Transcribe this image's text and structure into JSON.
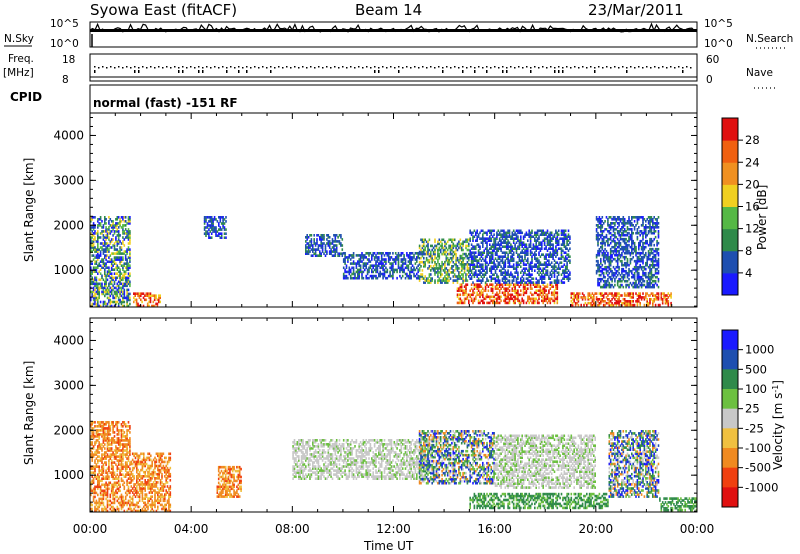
{
  "header": {
    "station": "Syowa East (fitACF)",
    "beam": "Beam 14",
    "date": "23/Mar/2011"
  },
  "top_panels": {
    "nsky_label": "N.Sky",
    "nsearch_label": "N.Search",
    "noise_ticks": [
      "10^5",
      "10^0"
    ],
    "freq_label": "Freq.",
    "freq_unit": "[MHz]",
    "freq_ticks": [
      "18",
      "8"
    ],
    "nave_ticks": [
      "60",
      "0"
    ],
    "nave_label": "Nave",
    "cpid_label": "CPID",
    "cpid_text": "normal (fast) -151 RF"
  },
  "colors": {
    "power": [
      "#1a1aff",
      "#1e4fb0",
      "#2f8a4a",
      "#55b845",
      "#f0d020",
      "#f09020",
      "#f06010",
      "#e01010"
    ],
    "velocity": [
      "#e01010",
      "#f04010",
      "#f08a20",
      "#f0c040",
      "#c8c8c8",
      "#6cc040",
      "#2f8a4a",
      "#1e4fb0",
      "#1a1aff"
    ]
  },
  "chart_data": [
    {
      "type": "heatmap",
      "title": "Power",
      "ylabel": "Slant Range [km]",
      "xlabel": "",
      "x_ticks": [
        "00:00",
        "04:00",
        "08:00",
        "12:00",
        "16:00",
        "20:00",
        "00:00"
      ],
      "x_range_hours": [
        0,
        24
      ],
      "y_ticks": [
        1000,
        2000,
        3000,
        4000
      ],
      "ylim": [
        180,
        4500
      ],
      "colorbar": {
        "label": "Power [dB]",
        "ticks": [
          "4",
          "8",
          "12",
          "16",
          "20",
          "24",
          "28"
        ],
        "range": [
          0,
          32
        ]
      },
      "regions": [
        {
          "h0": 0.0,
          "h1": 1.6,
          "r0": 180,
          "r1": 2200,
          "level": "mixed"
        },
        {
          "h0": 1.7,
          "h1": 2.8,
          "r0": 180,
          "r1": 500,
          "level": "high"
        },
        {
          "h0": 4.5,
          "h1": 5.4,
          "r0": 1700,
          "r1": 2200,
          "level": "low"
        },
        {
          "h0": 8.5,
          "h1": 10.0,
          "r0": 1300,
          "r1": 1800,
          "level": "low"
        },
        {
          "h0": 10.0,
          "h1": 13.0,
          "r0": 800,
          "r1": 1400,
          "level": "low"
        },
        {
          "h0": 13.0,
          "h1": 15.0,
          "r0": 700,
          "r1": 1700,
          "level": "mid"
        },
        {
          "h0": 14.5,
          "h1": 18.5,
          "r0": 250,
          "r1": 700,
          "level": "high"
        },
        {
          "h0": 15.0,
          "h1": 19.0,
          "r0": 700,
          "r1": 1900,
          "level": "low"
        },
        {
          "h0": 19.0,
          "h1": 23.0,
          "r0": 200,
          "r1": 500,
          "level": "high"
        },
        {
          "h0": 20.0,
          "h1": 22.5,
          "r0": 600,
          "r1": 2200,
          "level": "low"
        }
      ]
    },
    {
      "type": "heatmap",
      "title": "Velocity",
      "ylabel": "Slant Range [km]",
      "xlabel": "Time UT",
      "x_ticks": [
        "00:00",
        "04:00",
        "08:00",
        "12:00",
        "16:00",
        "20:00",
        "00:00"
      ],
      "x_range_hours": [
        0,
        24
      ],
      "y_ticks": [
        1000,
        2000,
        3000,
        4000
      ],
      "ylim": [
        180,
        4500
      ],
      "colorbar": {
        "label": "Velocity [m s^-1]",
        "ticks": [
          "1000",
          "500",
          "100",
          "25",
          "-25",
          "-100",
          "-500",
          "-1000"
        ]
      },
      "regions": [
        {
          "h0": 0.0,
          "h1": 1.6,
          "r0": 180,
          "r1": 2200,
          "level": "neg"
        },
        {
          "h0": 1.6,
          "h1": 3.2,
          "r0": 180,
          "r1": 1500,
          "level": "neg"
        },
        {
          "h0": 5.0,
          "h1": 6.0,
          "r0": 500,
          "r1": 1200,
          "level": "neg"
        },
        {
          "h0": 8.0,
          "h1": 13.5,
          "r0": 900,
          "r1": 1800,
          "level": "zero"
        },
        {
          "h0": 13.0,
          "h1": 16.0,
          "r0": 800,
          "r1": 2000,
          "level": "mixed"
        },
        {
          "h0": 15.0,
          "h1": 20.5,
          "r0": 250,
          "r1": 600,
          "level": "posg"
        },
        {
          "h0": 16.0,
          "h1": 20.0,
          "r0": 700,
          "r1": 1900,
          "level": "zero"
        },
        {
          "h0": 20.5,
          "h1": 22.5,
          "r0": 500,
          "r1": 2000,
          "level": "mixed"
        },
        {
          "h0": 22.5,
          "h1": 24.0,
          "r0": 200,
          "r1": 500,
          "level": "posg"
        }
      ]
    }
  ]
}
